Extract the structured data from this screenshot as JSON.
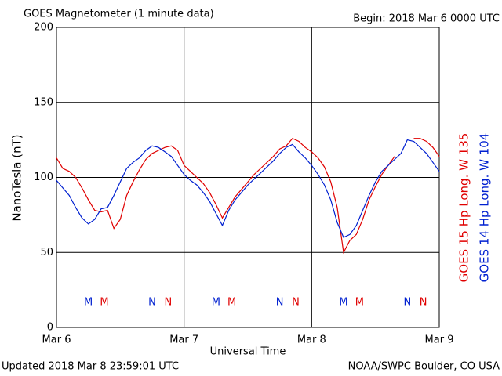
{
  "chart_data": {
    "type": "line",
    "title": "GOES Magnetometer (1 minute data)",
    "subtitle": "Begin:  2018 Mar 6 0000 UTC",
    "y_label": "NanoTesla (nT)",
    "x_label": "Universal Time",
    "footer_left": "Updated 2018 Mar  8 23:59:01 UTC",
    "footer_right": "NOAA/SWPC Boulder, CO USA",
    "x": [
      0,
      0.05,
      0.1,
      0.15,
      0.2,
      0.25,
      0.3,
      0.35,
      0.4,
      0.45,
      0.5,
      0.55,
      0.6,
      0.65,
      0.7,
      0.75,
      0.8,
      0.85,
      0.9,
      0.95,
      1,
      1.05,
      1.1,
      1.15,
      1.2,
      1.25,
      1.3,
      1.35,
      1.4,
      1.45,
      1.5,
      1.55,
      1.6,
      1.65,
      1.7,
      1.75,
      1.8,
      1.85,
      1.9,
      1.95,
      2,
      2.05,
      2.1,
      2.15,
      2.2,
      2.25,
      2.3,
      2.35,
      2.4,
      2.45,
      2.5,
      2.55,
      2.6,
      2.65,
      2.7,
      2.75,
      2.8,
      2.85,
      2.9,
      2.95,
      3
    ],
    "series": [
      {
        "name": "GOES 15 Hp  Long. W 135",
        "color": "#e00000",
        "values": [
          113,
          106,
          104,
          100,
          93,
          85,
          78,
          77,
          78,
          66,
          72,
          88,
          97,
          105,
          112,
          116,
          118,
          120,
          121,
          118,
          108,
          104,
          100,
          96,
          90,
          82,
          73,
          80,
          87,
          92,
          97,
          102,
          106,
          110,
          114,
          119,
          121,
          126,
          124,
          120,
          117,
          113,
          107,
          97,
          80,
          50,
          58,
          62,
          72,
          85,
          94,
          102,
          108,
          114,
          null,
          null,
          126,
          126,
          124,
          120,
          114
        ]
      },
      {
        "name": "GOES 14 Hp  Long. W 104",
        "color": "#0020d0",
        "values": [
          98,
          93,
          88,
          80,
          73,
          69,
          72,
          79,
          80,
          88,
          97,
          106,
          110,
          113,
          118,
          121,
          120,
          117,
          114,
          108,
          102,
          98,
          95,
          90,
          84,
          76,
          68,
          78,
          85,
          90,
          95,
          99,
          103,
          107,
          111,
          116,
          120,
          122,
          117,
          113,
          108,
          102,
          95,
          85,
          70,
          60,
          62,
          68,
          78,
          88,
          97,
          104,
          108,
          112,
          116,
          125,
          124,
          120,
          116,
          110,
          104
        ]
      }
    ],
    "markers": [
      {
        "label": "M",
        "x": 0.25,
        "series": 1
      },
      {
        "label": "M",
        "x": 0.375,
        "series": 0
      },
      {
        "label": "N",
        "x": 0.75,
        "series": 1
      },
      {
        "label": "N",
        "x": 0.875,
        "series": 0
      },
      {
        "label": "M",
        "x": 1.25,
        "series": 1
      },
      {
        "label": "M",
        "x": 1.375,
        "series": 0
      },
      {
        "label": "N",
        "x": 1.75,
        "series": 1
      },
      {
        "label": "N",
        "x": 1.875,
        "series": 0
      },
      {
        "label": "M",
        "x": 2.25,
        "series": 1
      },
      {
        "label": "M",
        "x": 2.375,
        "series": 0
      },
      {
        "label": "N",
        "x": 2.75,
        "series": 1
      },
      {
        "label": "N",
        "x": 2.875,
        "series": 0
      }
    ],
    "xlim": [
      0,
      3
    ],
    "xticks": [
      {
        "value": 0,
        "label": "Mar 6"
      },
      {
        "value": 1,
        "label": "Mar 7"
      },
      {
        "value": 2,
        "label": "Mar 8"
      },
      {
        "value": 3,
        "label": "Mar 9"
      }
    ],
    "ylim": [
      0,
      200
    ],
    "yticks": [
      0,
      50,
      100,
      150,
      200
    ],
    "grid": true
  }
}
